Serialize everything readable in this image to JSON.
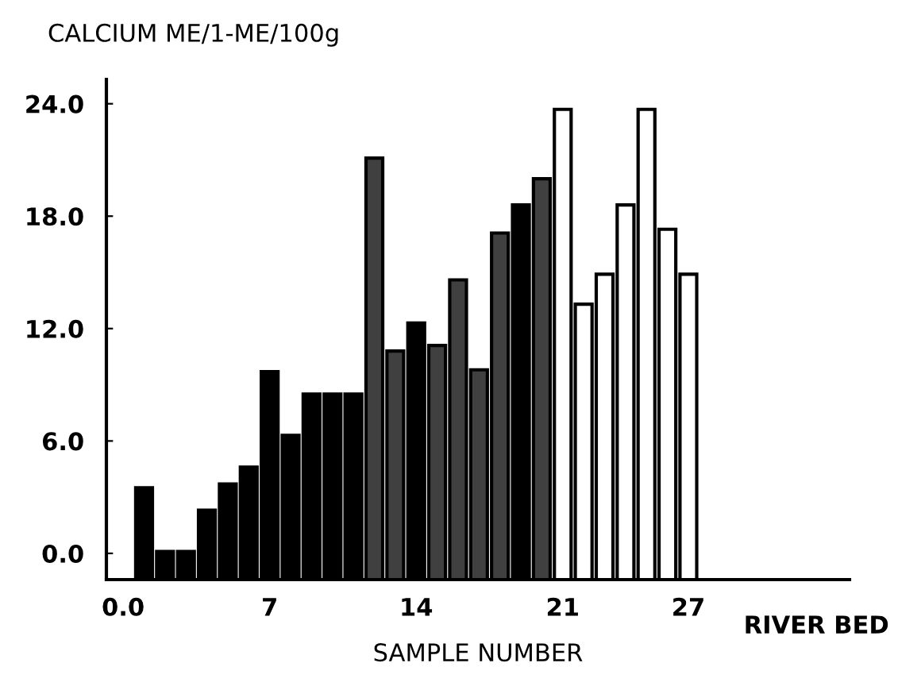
{
  "chart_data": {
    "type": "bar",
    "title": "CALCIUM ME/1-ME/100g",
    "xlabel": "SAMPLE NUMBER",
    "annotations": [
      "RIVER BED"
    ],
    "x": [
      1,
      2,
      3,
      4,
      5,
      6,
      7,
      8,
      9,
      10,
      11,
      12,
      13,
      14,
      15,
      16,
      17,
      18,
      19,
      20,
      21,
      22,
      23,
      24,
      25,
      26,
      27
    ],
    "base": [
      -1.4,
      -1.4,
      -1.4,
      -1.4,
      -1.4,
      -1.4,
      -1.4,
      -1.4,
      -1.4,
      -1.4,
      -1.4,
      -1.4,
      -1.4,
      -1.4,
      -1.4,
      -1.4,
      -1.4,
      -1.4,
      -1.4,
      -1.4,
      -1.4,
      -1.4,
      -1.4,
      -1.4,
      -1.4,
      -1.4,
      -1.4
    ],
    "values": [
      4.9,
      1.5,
      1.5,
      3.7,
      5.1,
      6.0,
      11.1,
      7.7,
      9.9,
      9.9,
      9.9,
      22.5,
      12.2,
      13.7,
      12.5,
      16.0,
      11.2,
      18.5,
      20.0,
      21.4,
      25.1,
      14.7,
      16.3,
      20.0,
      25.1,
      18.7,
      16.3
    ],
    "colors": [
      "#000000",
      "#000000",
      "#000000",
      "#000000",
      "#000000",
      "#000000",
      "#000000",
      "#000000",
      "#000000",
      "#000000",
      "#000000",
      "#404040",
      "#404040",
      "#000000",
      "#404040",
      "#404040",
      "#404040",
      "#404040",
      "#000000",
      "#404040",
      "#ffffff",
      "#ffffff",
      "#ffffff",
      "#ffffff",
      "#ffffff",
      "#ffffff",
      "#ffffff"
    ],
    "xlim": [
      -0.8,
      34.7
    ],
    "ylim": [
      -1.4,
      25.3
    ],
    "xticks": [
      {
        "value": 0,
        "label": "0.0"
      },
      7,
      14,
      21,
      27
    ],
    "yticks": [
      {
        "value": 0,
        "label": "0.0"
      },
      {
        "value": 6,
        "label": "6.0"
      },
      {
        "value": 12,
        "label": "12.0"
      },
      {
        "value": 18,
        "label": "18.0"
      },
      {
        "value": 24,
        "label": "24.0"
      }
    ],
    "grid": false,
    "legend": false
  }
}
